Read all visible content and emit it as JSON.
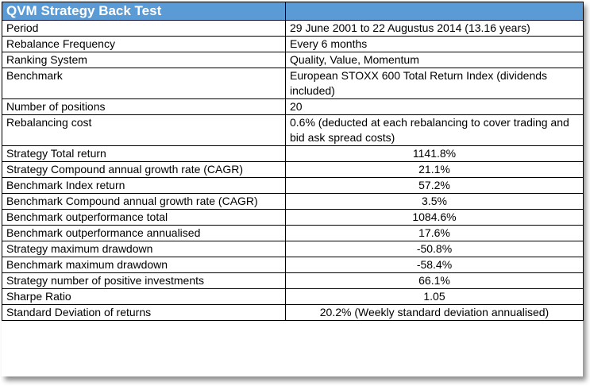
{
  "table": {
    "title": "QVM Strategy Back Test",
    "rows": [
      {
        "label": "Period",
        "value": "29 June 2001 to 22 Augustus 2014 (13.16 years)"
      },
      {
        "label": "Rebalance Frequency",
        "value": "Every 6 months"
      },
      {
        "label": "Ranking System",
        "value": "Quality, Value, Momentum"
      },
      {
        "label": "Benchmark",
        "value": "European STOXX 600 Total Return Index (dividends included)"
      },
      {
        "label": "Number of positions",
        "value": "20"
      },
      {
        "label": "Rebalancing cost",
        "value": "0.6% (deducted at each rebalancing to cover trading and bid ask spread costs)"
      },
      {
        "label": "Strategy Total return",
        "value": "1141.8%"
      },
      {
        "label": "Strategy Compound annual growth rate (CAGR)",
        "value": "21.1%"
      },
      {
        "label": "Benchmark Index return",
        "value": "57.2%"
      },
      {
        "label": "Benchmark Compound annual growth rate (CAGR)",
        "value": "3.5%"
      },
      {
        "label": "Benchmark outperformance total",
        "value": "1084.6%"
      },
      {
        "label": "Benchmark outperformance annualised",
        "value": "17.6%"
      },
      {
        "label": "Strategy maximum drawdown",
        "value": "-50.8%"
      },
      {
        "label": "Benchmark maximum drawdown",
        "value": "-58.4%"
      },
      {
        "label": "Strategy number of positive investments",
        "value": "66.1%"
      },
      {
        "label": "Sharpe Ratio",
        "value": "1.05"
      },
      {
        "label": "Standard Deviation of returns",
        "value": "20.2% (Weekly standard deviation annualised)"
      }
    ]
  }
}
